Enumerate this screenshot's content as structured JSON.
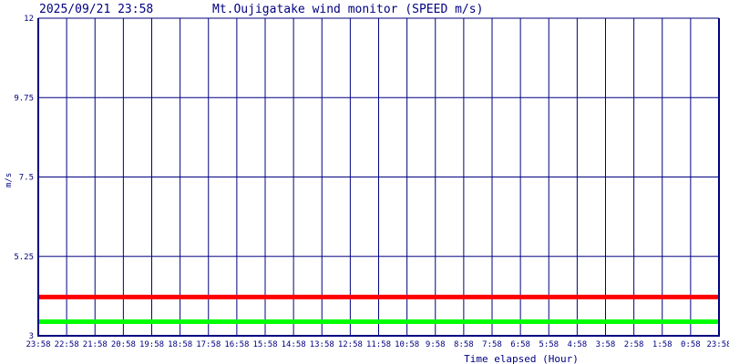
{
  "header": {
    "datetime": "2025/09/21 23:58",
    "title": "Mt.Oujigatake wind monitor (SPEED m/s)"
  },
  "chart_data": {
    "type": "line",
    "title": "Mt.Oujigatake wind monitor (SPEED m/s)",
    "xlabel": "Time elapsed (Hour)",
    "ylabel": "m/s",
    "ylim": [
      3,
      12
    ],
    "y_ticks": [
      "12",
      "9.75",
      "7.5",
      "5.25",
      "3"
    ],
    "y_tick_values": [
      12,
      9.75,
      7.5,
      5.25,
      3
    ],
    "x_ticks": [
      "23:58",
      "22:58",
      "21:58",
      "20:58",
      "19:58",
      "18:58",
      "17:58",
      "16:58",
      "15:58",
      "14:58",
      "13:58",
      "12:58",
      "11:58",
      "10:58",
      "9:58",
      "8:58",
      "7:58",
      "6:58",
      "5:58",
      "4:58",
      "3:58",
      "2:58",
      "1:58",
      "0:58",
      "23:58"
    ],
    "grid": true,
    "colors": {
      "axis": "#000080",
      "grid": "#000080"
    },
    "series": [
      {
        "color": "#ff0000",
        "values": [
          4.1,
          4.1,
          4.1,
          4.1,
          4.1,
          4.1,
          4.1,
          4.1,
          4.1,
          4.1,
          4.1,
          4.1,
          4.1,
          4.1,
          4.1,
          4.1,
          4.1,
          4.1,
          4.1,
          4.1,
          4.1,
          4.1,
          4.1,
          4.1,
          4.1
        ]
      },
      {
        "color": "#00ff00",
        "values": [
          3.4,
          3.4,
          3.4,
          3.4,
          3.4,
          3.4,
          3.4,
          3.4,
          3.4,
          3.4,
          3.4,
          3.4,
          3.4,
          3.4,
          3.4,
          3.4,
          3.4,
          3.4,
          3.4,
          3.4,
          3.4,
          3.4,
          3.4,
          3.4,
          3.4
        ]
      }
    ]
  }
}
